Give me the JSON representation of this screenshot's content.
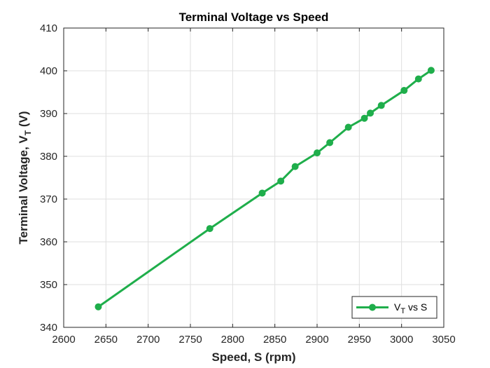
{
  "chart_data": {
    "type": "line",
    "title": "Terminal Voltage vs Speed",
    "xlabel": "Speed, S (rpm)",
    "ylabel": {
      "main": "Terminal Voltage, V",
      "subscript": "T",
      "suffix": " (V)"
    },
    "xlim": [
      2600,
      3050
    ],
    "ylim": [
      340,
      410
    ],
    "xticks": [
      2600,
      2650,
      2700,
      2750,
      2800,
      2850,
      2900,
      2950,
      3000,
      3050
    ],
    "yticks": [
      340,
      350,
      360,
      370,
      380,
      390,
      400,
      410
    ],
    "grid": true,
    "legend": {
      "placement": "bottom-right",
      "label_main": "V",
      "label_sub": "T",
      "label_suffix": " vs S"
    },
    "series": [
      {
        "name": "VT vs S",
        "color": "#1fae4b",
        "x": [
          2641,
          2773,
          2835,
          2857,
          2874,
          2900,
          2915,
          2937,
          2956,
          2963,
          2976,
          3003,
          3020,
          3035
        ],
        "y": [
          344.8,
          363.1,
          371.4,
          374.2,
          377.6,
          380.8,
          383.2,
          386.8,
          388.9,
          390.1,
          391.9,
          395.4,
          398.1,
          400.1
        ]
      }
    ]
  }
}
